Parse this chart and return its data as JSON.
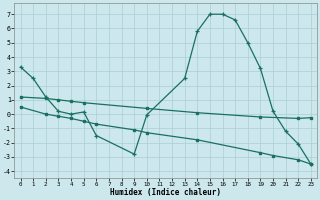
{
  "xlabel": "Humidex (Indice chaleur)",
  "bg_color": "#cce8ec",
  "grid_color": "#aacdd4",
  "line_color": "#1a7060",
  "xlim_min": -0.5,
  "xlim_max": 23.5,
  "ylim_min": -4.5,
  "ylim_max": 7.8,
  "yticks": [
    -4,
    -3,
    -2,
    -1,
    0,
    1,
    2,
    3,
    4,
    5,
    6,
    7
  ],
  "xticks": [
    0,
    1,
    2,
    3,
    4,
    5,
    6,
    7,
    8,
    9,
    10,
    11,
    12,
    13,
    14,
    15,
    16,
    17,
    18,
    19,
    20,
    21,
    22,
    23
  ],
  "curve_x": [
    0,
    1,
    2,
    3,
    4,
    5,
    6,
    9,
    10,
    13,
    14,
    15,
    16,
    17,
    18,
    19,
    20,
    21,
    22,
    23
  ],
  "curve_y": [
    3.3,
    2.5,
    1.2,
    0.2,
    0.0,
    0.15,
    -1.5,
    -2.8,
    -0.05,
    2.5,
    5.8,
    7.0,
    7.0,
    6.6,
    5.0,
    3.2,
    0.2,
    -1.2,
    -2.1,
    -3.5
  ],
  "line1_x": [
    0,
    2,
    3,
    4,
    5,
    10,
    14,
    19,
    22,
    23
  ],
  "line1_y": [
    1.2,
    1.1,
    1.0,
    0.9,
    0.8,
    0.4,
    0.1,
    -0.2,
    -0.3,
    -0.25
  ],
  "line2_x": [
    0,
    2,
    3,
    4,
    5,
    6,
    9,
    10,
    14,
    19,
    20,
    22,
    23
  ],
  "line2_y": [
    0.5,
    0.0,
    -0.15,
    -0.3,
    -0.5,
    -0.7,
    -1.1,
    -1.3,
    -1.8,
    -2.7,
    -2.9,
    -3.2,
    -3.5
  ]
}
